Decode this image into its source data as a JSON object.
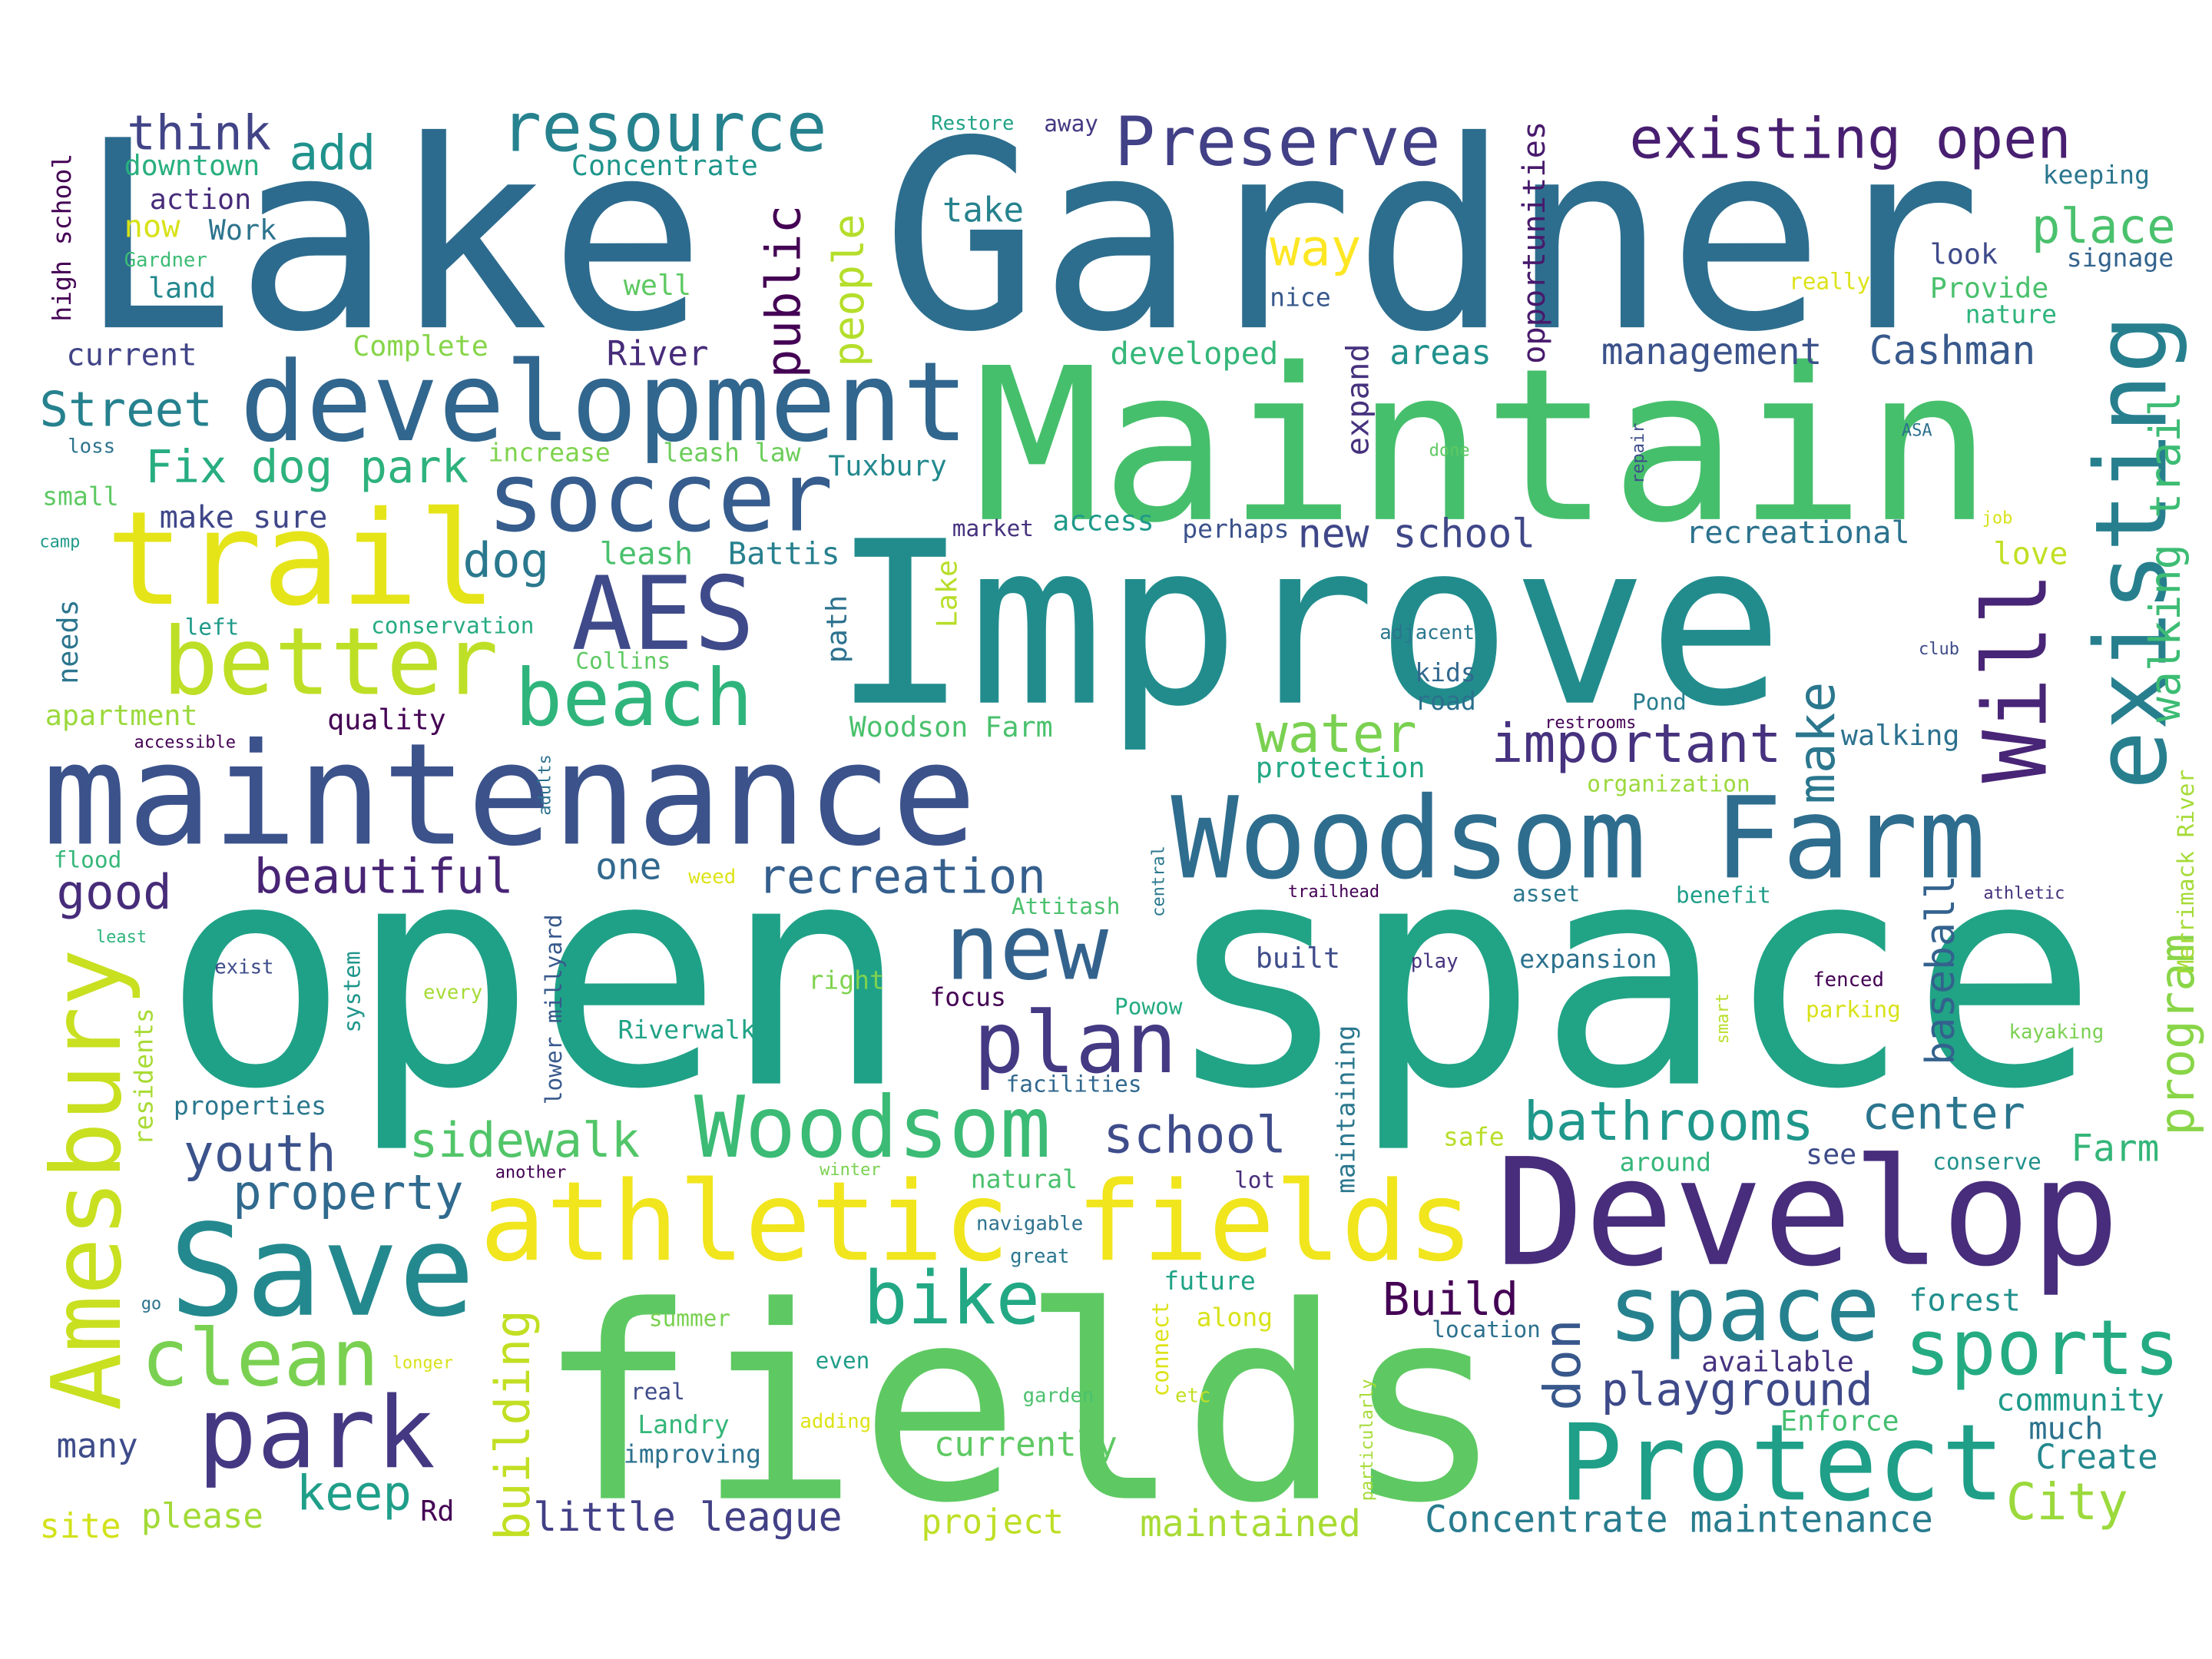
{
  "words": [
    {
      "text": "Lake",
      "color": "#2c6b8e"
    },
    {
      "text": "Gardner",
      "color": "#2d6e8e"
    },
    {
      "text": "Maintain",
      "color": "#46bf6c"
    },
    {
      "text": "Improve",
      "color": "#228c8d"
    },
    {
      "text": "open",
      "color": "#1fa187"
    },
    {
      "text": "space",
      "color": "#21a386"
    },
    {
      "text": "fields",
      "color": "#5ec962"
    },
    {
      "text": "maintenance",
      "color": "#3b528b"
    },
    {
      "text": "Develop",
      "color": "#472d7b"
    },
    {
      "text": "development",
      "color": "#31668e"
    },
    {
      "text": "Woodsom Farm",
      "color": "#2e6d8e"
    },
    {
      "text": "trail",
      "color": "#e5e419"
    },
    {
      "text": "athletic fields",
      "color": "#f1e51d"
    },
    {
      "text": "Save",
      "color": "#23898e"
    },
    {
      "text": "Amesbury",
      "color": "#c8e020"
    },
    {
      "text": "Protect",
      "color": "#1f9f88"
    },
    {
      "text": "existing",
      "color": "#277f8e"
    },
    {
      "text": "soccer",
      "color": "#365d8d"
    },
    {
      "text": "better",
      "color": "#bddf26"
    },
    {
      "text": "AES",
      "color": "#3e4a89"
    },
    {
      "text": "beach",
      "color": "#2fb47c"
    },
    {
      "text": "new",
      "color": "#33638d"
    },
    {
      "text": "plan",
      "color": "#443983"
    },
    {
      "text": "Woodsom",
      "color": "#3bbb75"
    },
    {
      "text": "park",
      "color": "#453882"
    },
    {
      "text": "clean",
      "color": "#7ad151"
    },
    {
      "text": "space",
      "color": "#26818e"
    },
    {
      "text": "sports",
      "color": "#25ab82"
    },
    {
      "text": "resource",
      "color": "#26828e"
    },
    {
      "text": "Preserve",
      "color": "#424086"
    },
    {
      "text": "existing open",
      "color": "#481f70"
    },
    {
      "text": "Will",
      "color": "#482576"
    },
    {
      "text": "bike",
      "color": "#22a884"
    },
    {
      "text": "think",
      "color": "#414487"
    },
    {
      "text": "add",
      "color": "#20928c"
    },
    {
      "text": "place",
      "color": "#4ac16d"
    },
    {
      "text": "public",
      "color": "#440154"
    },
    {
      "text": "people",
      "color": "#b5de2b"
    },
    {
      "text": "way",
      "color": "#fde725"
    },
    {
      "text": "Street",
      "color": "#26818e"
    },
    {
      "text": "Fix",
      "color": "#27ad81"
    },
    {
      "text": "dog park",
      "color": "#2db27d"
    },
    {
      "text": "dog",
      "color": "#2a788e"
    },
    {
      "text": "water",
      "color": "#7ad151"
    },
    {
      "text": "important",
      "color": "#46327e"
    },
    {
      "text": "make",
      "color": "#2a778e"
    },
    {
      "text": "walking trail",
      "color": "#3dbc74"
    },
    {
      "text": "recreation",
      "color": "#355f8d"
    },
    {
      "text": "beautiful",
      "color": "#482475"
    },
    {
      "text": "good",
      "color": "#472c7a"
    },
    {
      "text": "one",
      "color": "#31688e"
    },
    {
      "text": "bathrooms",
      "color": "#1f978b"
    },
    {
      "text": "center",
      "color": "#2b758e"
    },
    {
      "text": "school",
      "color": "#3e4c8a"
    },
    {
      "text": "youth",
      "color": "#3b528b"
    },
    {
      "text": "sidewalk",
      "color": "#52c569"
    },
    {
      "text": "property",
      "color": "#306a8e"
    },
    {
      "text": "program",
      "color": "#89d548"
    },
    {
      "text": "baseball",
      "color": "#33628d"
    },
    {
      "text": "Farm",
      "color": "#34b679"
    },
    {
      "text": "keep",
      "color": "#1f9e89"
    },
    {
      "text": "building",
      "color": "#c2df23"
    },
    {
      "text": "Build",
      "color": "#440154"
    },
    {
      "text": "don",
      "color": "#38588c"
    },
    {
      "text": "playground",
      "color": "#3e4989"
    },
    {
      "text": "City",
      "color": "#9bd93c"
    },
    {
      "text": "little league",
      "color": "#424086"
    },
    {
      "text": "Concentrate maintenance",
      "color": "#287c8e"
    },
    {
      "text": "maintained",
      "color": "#a8db34"
    },
    {
      "text": "project",
      "color": "#bddf26"
    },
    {
      "text": "please",
      "color": "#a2da37"
    },
    {
      "text": "site",
      "color": "#d2e21b"
    },
    {
      "text": "Rd",
      "color": "#440154"
    },
    {
      "text": "many",
      "color": "#3e4c8a"
    },
    {
      "text": "currently",
      "color": "#5ec962"
    },
    {
      "text": "community",
      "color": "#1f9a8a"
    },
    {
      "text": "much",
      "color": "#2c728e"
    },
    {
      "text": "Create",
      "color": "#23898e"
    },
    {
      "text": "Enforce",
      "color": "#44bf70"
    },
    {
      "text": "available",
      "color": "#46337f"
    },
    {
      "text": "forest",
      "color": "#21908d"
    },
    {
      "text": "management",
      "color": "#3b528b"
    },
    {
      "text": "Cashman",
      "color": "#38598c"
    },
    {
      "text": "areas",
      "color": "#21918c"
    },
    {
      "text": "developed",
      "color": "#35b779"
    },
    {
      "text": "new school",
      "color": "#3f4788"
    },
    {
      "text": "recreational",
      "color": "#2c728e"
    },
    {
      "text": "expand",
      "color": "#46327e"
    },
    {
      "text": "opportunities",
      "color": "#481a6c"
    },
    {
      "text": "take",
      "color": "#26828e"
    },
    {
      "text": "nice",
      "color": "#38588c"
    },
    {
      "text": "River",
      "color": "#472c7a"
    },
    {
      "text": "Concentrate",
      "color": "#1f968b"
    },
    {
      "text": "downtown",
      "color": "#29af7f"
    },
    {
      "text": "action",
      "color": "#472c7a"
    },
    {
      "text": "now",
      "color": "#d8e219"
    },
    {
      "text": "Work",
      "color": "#2c738e"
    },
    {
      "text": "Gardner",
      "color": "#3dbc74"
    },
    {
      "text": "land",
      "color": "#24878e"
    },
    {
      "text": "current",
      "color": "#414487"
    },
    {
      "text": "well",
      "color": "#5ec962"
    },
    {
      "text": "Complete",
      "color": "#86d549"
    },
    {
      "text": "high school",
      "color": "#440154"
    },
    {
      "text": "Restore",
      "color": "#20a386"
    },
    {
      "text": "away",
      "color": "#443983"
    },
    {
      "text": "keeping",
      "color": "#2a768e"
    },
    {
      "text": "signage",
      "color": "#33638d"
    },
    {
      "text": "look",
      "color": "#3e4a89"
    },
    {
      "text": "really",
      "color": "#dde318"
    },
    {
      "text": "Provide",
      "color": "#4ac16d"
    },
    {
      "text": "nature",
      "color": "#2fb47c"
    },
    {
      "text": "loss",
      "color": "#2c728e"
    },
    {
      "text": "small",
      "color": "#5ec962"
    },
    {
      "text": "camp",
      "color": "#1f9a8a"
    },
    {
      "text": "make sure",
      "color": "#3f4788"
    },
    {
      "text": "increase",
      "color": "#7fd34e"
    },
    {
      "text": "leash law",
      "color": "#6ccd5a"
    },
    {
      "text": "Tuxbury",
      "color": "#23898e"
    },
    {
      "text": "access",
      "color": "#1f9a8a"
    },
    {
      "text": "market",
      "color": "#46327e"
    },
    {
      "text": "perhaps",
      "color": "#3b528b"
    },
    {
      "text": "leash",
      "color": "#4ac16d"
    },
    {
      "text": "Battis",
      "color": "#27808e"
    },
    {
      "text": "Lake",
      "color": "#b8de29"
    },
    {
      "text": "path",
      "color": "#2c718e"
    },
    {
      "text": "needs",
      "color": "#2b758e"
    },
    {
      "text": "left",
      "color": "#1f9a8a"
    },
    {
      "text": "conservation",
      "color": "#25ab82"
    },
    {
      "text": "Collins",
      "color": "#5ec962"
    },
    {
      "text": "apartment",
      "color": "#9bd93c"
    },
    {
      "text": "accessible",
      "color": "#440154"
    },
    {
      "text": "quality",
      "color": "#440154"
    },
    {
      "text": "Woodson Farm",
      "color": "#4ac16d"
    },
    {
      "text": "protection",
      "color": "#22a884"
    },
    {
      "text": "adults",
      "color": "#2c718e"
    },
    {
      "text": "kids",
      "color": "#31688e"
    },
    {
      "text": "road",
      "color": "#2c718e"
    },
    {
      "text": "restrooms",
      "color": "#440154"
    },
    {
      "text": "Pond",
      "color": "#287d8e"
    },
    {
      "text": "walking",
      "color": "#2c718e"
    },
    {
      "text": "organization",
      "color": "#9bd93c"
    },
    {
      "text": "adjacent",
      "color": "#2a778e"
    },
    {
      "text": "club",
      "color": "#3e4c8a"
    },
    {
      "text": "love",
      "color": "#c2df23"
    },
    {
      "text": "job",
      "color": "#d8e219"
    },
    {
      "text": "ASA",
      "color": "#2c718e"
    },
    {
      "text": "done",
      "color": "#5ec962"
    },
    {
      "text": "repair",
      "color": "#3e4c8a"
    },
    {
      "text": "Merrimack River",
      "color": "#a5db36"
    },
    {
      "text": "flood",
      "color": "#35b779"
    },
    {
      "text": "least",
      "color": "#2fb47c"
    },
    {
      "text": "weed",
      "color": "#dde318"
    },
    {
      "text": "Attitash",
      "color": "#4ac16d"
    },
    {
      "text": "central",
      "color": "#2a788e"
    },
    {
      "text": "trailhead",
      "color": "#440154"
    },
    {
      "text": "asset",
      "color": "#2a778e"
    },
    {
      "text": "benefit",
      "color": "#1f9e89"
    },
    {
      "text": "athletic",
      "color": "#46327e"
    },
    {
      "text": "exist",
      "color": "#3e4c8a"
    },
    {
      "text": "every",
      "color": "#a5db36"
    },
    {
      "text": "system",
      "color": "#1f968b"
    },
    {
      "text": "lower millyard",
      "color": "#38598c"
    },
    {
      "text": "residents",
      "color": "#a8db34"
    },
    {
      "text": "right",
      "color": "#7fd34e"
    },
    {
      "text": "Riverwalk",
      "color": "#20a386"
    },
    {
      "text": "focus",
      "color": "#440154"
    },
    {
      "text": "built",
      "color": "#3e4c8a"
    },
    {
      "text": "play",
      "color": "#46327e"
    },
    {
      "text": "expansion",
      "color": "#2c718e"
    },
    {
      "text": "Powow",
      "color": "#25ab82"
    },
    {
      "text": "maintaining",
      "color": "#2a778e"
    },
    {
      "text": "smart",
      "color": "#b8de29"
    },
    {
      "text": "fenced",
      "color": "#440154"
    },
    {
      "text": "parking",
      "color": "#d8e219"
    },
    {
      "text": "kayaking",
      "color": "#7ad151"
    },
    {
      "text": "properties",
      "color": "#2a778e"
    },
    {
      "text": "facilities",
      "color": "#31688e"
    },
    {
      "text": "safe",
      "color": "#b8de29"
    },
    {
      "text": "around",
      "color": "#35b779"
    },
    {
      "text": "see",
      "color": "#3e4c8a"
    },
    {
      "text": "conserve",
      "color": "#21918c"
    },
    {
      "text": "another",
      "color": "#440154"
    },
    {
      "text": "winter",
      "color": "#7ad151"
    },
    {
      "text": "natural",
      "color": "#4ac16d"
    },
    {
      "text": "lot",
      "color": "#472c7a"
    },
    {
      "text": "navigable",
      "color": "#2c718e"
    },
    {
      "text": "great",
      "color": "#2a778e"
    },
    {
      "text": "future",
      "color": "#20a386"
    },
    {
      "text": "along",
      "color": "#d8e219"
    },
    {
      "text": "connect",
      "color": "#dde318"
    },
    {
      "text": "location",
      "color": "#2c718e"
    },
    {
      "text": "particularly",
      "color": "#a5db36"
    },
    {
      "text": "go",
      "color": "#2c718e"
    },
    {
      "text": "summer",
      "color": "#7ad151"
    },
    {
      "text": "even",
      "color": "#1f9e89"
    },
    {
      "text": "longer",
      "color": "#d8e219"
    },
    {
      "text": "real",
      "color": "#3e4c8a"
    },
    {
      "text": "garden",
      "color": "#4ac16d"
    },
    {
      "text": "etc",
      "color": "#c2df23"
    },
    {
      "text": "Landry",
      "color": "#35b779"
    },
    {
      "text": "adding",
      "color": "#dde318"
    },
    {
      "text": "improving",
      "color": "#2c718e"
    }
  ]
}
